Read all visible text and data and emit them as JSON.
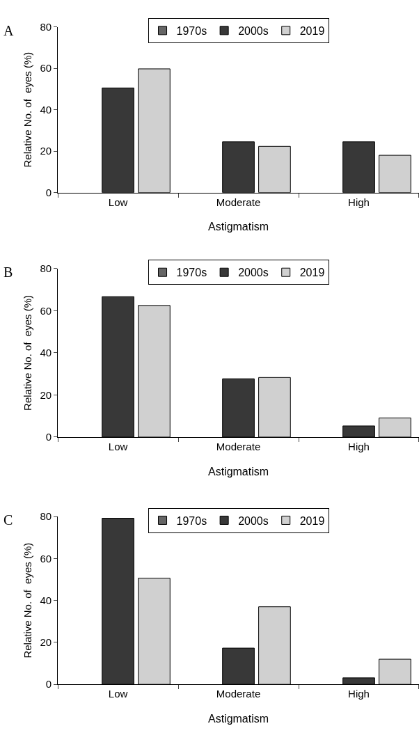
{
  "chart_data": [
    {
      "type": "bar",
      "title": "A",
      "xlabel": "Astigmatism",
      "ylabel": "Relative No. of  eyes (%)",
      "categories": [
        "Low",
        "Moderate",
        "High"
      ],
      "ylim": [
        0,
        80
      ],
      "yticks": [
        0,
        20,
        40,
        60,
        80
      ],
      "legend": "top",
      "series": [
        {
          "name": "1970s",
          "color": "#666666",
          "values": [
            null,
            null,
            null
          ]
        },
        {
          "name": "2000s",
          "color": "#383838",
          "values": [
            50.5,
            24.5,
            24.5
          ]
        },
        {
          "name": "2019",
          "color": "#d0d0d0",
          "values": [
            59.7,
            22.3,
            18.0
          ]
        }
      ]
    },
    {
      "type": "bar",
      "title": "B",
      "xlabel": "Astigmatism",
      "ylabel": "Relative No. of  eyes (%)",
      "categories": [
        "Low",
        "Moderate",
        "High"
      ],
      "ylim": [
        0,
        80
      ],
      "yticks": [
        0,
        20,
        40,
        60,
        80
      ],
      "legend": "top",
      "series": [
        {
          "name": "1970s",
          "color": "#666666",
          "values": [
            null,
            null,
            null
          ]
        },
        {
          "name": "2000s",
          "color": "#383838",
          "values": [
            66.7,
            27.7,
            5.3
          ]
        },
        {
          "name": "2019",
          "color": "#d0d0d0",
          "values": [
            62.5,
            28.3,
            9.1
          ]
        }
      ]
    },
    {
      "type": "bar",
      "title": "C",
      "xlabel": "Astigmatism",
      "ylabel": "Relative No. of  eyes (%)",
      "categories": [
        "Low",
        "Moderate",
        "High"
      ],
      "ylim": [
        0,
        80
      ],
      "yticks": [
        0,
        20,
        40,
        60,
        80
      ],
      "legend": "top",
      "series": [
        {
          "name": "1970s",
          "color": "#666666",
          "values": [
            null,
            null,
            null
          ]
        },
        {
          "name": "2000s",
          "color": "#383838",
          "values": [
            79.2,
            17.3,
            3.1
          ]
        },
        {
          "name": "2019",
          "color": "#d0d0d0",
          "values": [
            50.6,
            37.0,
            12.0
          ]
        }
      ]
    }
  ]
}
